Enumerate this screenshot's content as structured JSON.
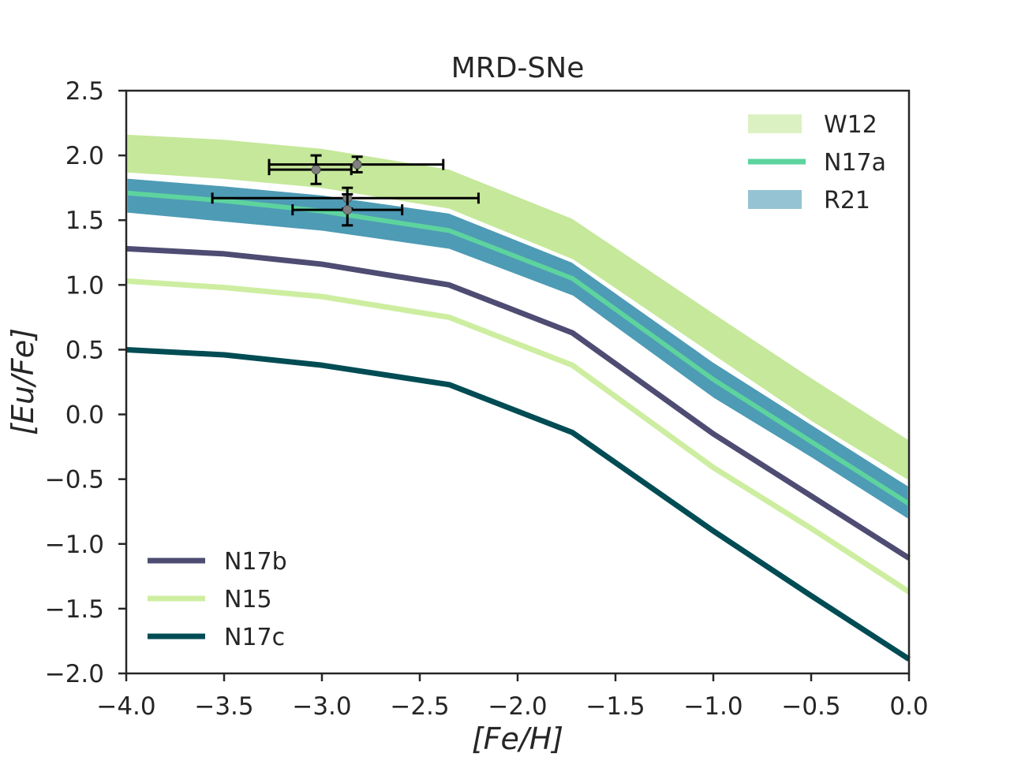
{
  "chart_data": {
    "type": "line",
    "title": "MRD-SNe",
    "xlabel": "[Fe/H]",
    "ylabel": "[Eu/Fe]",
    "xlim": [
      -4.0,
      0.0
    ],
    "ylim": [
      -2.0,
      2.5
    ],
    "xticks": [
      -4.0,
      -3.5,
      -3.0,
      -2.5,
      -2.0,
      -1.5,
      -1.0,
      -0.5,
      0.0
    ],
    "yticks": [
      -2.0,
      -1.5,
      -1.0,
      -0.5,
      0.0,
      0.5,
      1.0,
      1.5,
      2.0,
      2.5
    ],
    "x_tick_labels": [
      "−4.0",
      "−3.5",
      "−3.0",
      "−2.5",
      "−2.0",
      "−1.5",
      "−1.0",
      "−0.5",
      "0.0"
    ],
    "y_tick_labels": [
      "−2.0",
      "−1.5",
      "−1.0",
      "−0.5",
      "0.0",
      "0.5",
      "1.0",
      "1.5",
      "2.0",
      "2.5"
    ],
    "bands": [
      {
        "name": "W12",
        "color": "#c5e89a",
        "x": [
          -4.0,
          -3.5,
          -3.0,
          -2.35,
          -1.72,
          -1.0,
          -0.5,
          0.0
        ],
        "lower": [
          1.86,
          1.81,
          1.74,
          1.58,
          1.19,
          0.45,
          -0.06,
          -0.52
        ],
        "upper": [
          2.17,
          2.13,
          2.06,
          1.9,
          1.52,
          0.79,
          0.29,
          -0.19
        ]
      },
      {
        "name": "R21",
        "color": "#4e9bb5",
        "x": [
          -4.0,
          -3.5,
          -3.0,
          -2.35,
          -1.72,
          -1.0,
          -0.5,
          0.0
        ],
        "lower": [
          1.55,
          1.48,
          1.41,
          1.27,
          0.91,
          0.12,
          -0.34,
          -0.82
        ],
        "upper": [
          1.83,
          1.77,
          1.7,
          1.56,
          1.18,
          0.41,
          -0.07,
          -0.55
        ]
      }
    ],
    "series": [
      {
        "name": "N17a",
        "color": "#5dd39e",
        "x": [
          -4.0,
          -3.5,
          -3.0,
          -2.35,
          -1.72,
          -1.0,
          -0.5,
          0.0
        ],
        "y": [
          1.71,
          1.65,
          1.57,
          1.42,
          1.05,
          0.27,
          -0.21,
          -0.69
        ]
      },
      {
        "name": "N17b",
        "color": "#4e4c72",
        "x": [
          -4.0,
          -3.5,
          -3.0,
          -2.35,
          -1.72,
          -1.0,
          -0.5,
          0.0
        ],
        "y": [
          1.28,
          1.24,
          1.16,
          1.0,
          0.63,
          -0.15,
          -0.63,
          -1.11
        ]
      },
      {
        "name": "N15",
        "color": "#cdeea0",
        "x": [
          -4.0,
          -3.5,
          -3.0,
          -2.35,
          -1.72,
          -1.0,
          -0.5,
          0.0
        ],
        "y": [
          1.03,
          0.98,
          0.91,
          0.75,
          0.38,
          -0.41,
          -0.88,
          -1.37
        ]
      },
      {
        "name": "N17c",
        "color": "#004c54",
        "x": [
          -4.0,
          -3.5,
          -3.0,
          -2.35,
          -1.72,
          -1.0,
          -0.5,
          0.0
        ],
        "y": [
          0.5,
          0.46,
          0.38,
          0.23,
          -0.14,
          -0.9,
          -1.4,
          -1.89
        ]
      }
    ],
    "observations": [
      {
        "x": -3.03,
        "y": 1.89,
        "xerr_low": 0.24,
        "xerr_high": 0.18,
        "yerr": 0.11
      },
      {
        "x": -2.82,
        "y": 1.93,
        "xerr_low": 0.45,
        "xerr_high": 0.44,
        "yerr": 0.06
      },
      {
        "x": -2.87,
        "y": 1.67,
        "xerr_low": 0.69,
        "xerr_high": 0.67,
        "yerr": 0.08
      },
      {
        "x": -2.87,
        "y": 1.58,
        "xerr_low": 0.28,
        "xerr_high": 0.28,
        "yerr": 0.12
      }
    ],
    "legends": [
      {
        "position": "upper-right",
        "entries": [
          {
            "label": "W12",
            "kind": "band"
          },
          {
            "label": "N17a",
            "kind": "line"
          },
          {
            "label": "R21",
            "kind": "band"
          }
        ]
      },
      {
        "position": "lower-left",
        "entries": [
          {
            "label": "N17b",
            "kind": "line"
          },
          {
            "label": "N15",
            "kind": "line"
          },
          {
            "label": "N17c",
            "kind": "line"
          }
        ]
      }
    ]
  }
}
